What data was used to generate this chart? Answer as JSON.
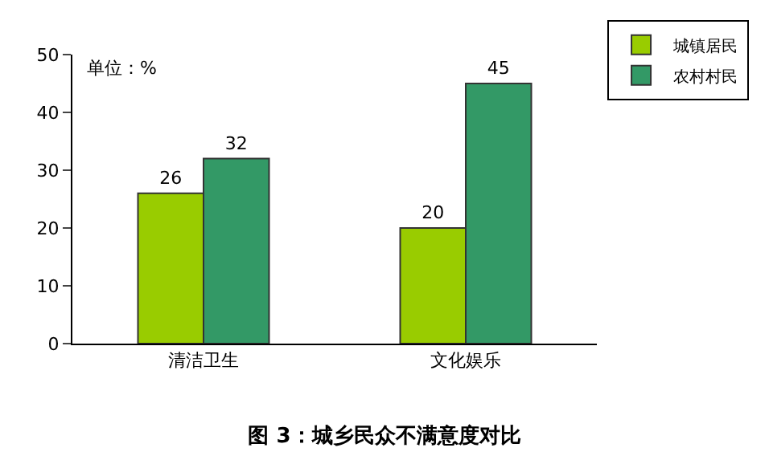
{
  "chart_data": {
    "type": "bar",
    "title": "图 3：城乡民众不满意度对比",
    "categories": [
      "清洁卫生",
      "文化娱乐"
    ],
    "series": [
      {
        "name": "城镇居民",
        "color": "#99cc00",
        "values": [
          26,
          20
        ]
      },
      {
        "name": "农村村民",
        "color": "#339966",
        "values": [
          32,
          45
        ]
      }
    ],
    "ylim": [
      0,
      50
    ],
    "yticks": [
      0,
      10,
      20,
      30,
      40,
      50
    ],
    "annotations": [
      "单位：%"
    ],
    "data_labels": true,
    "grid": false,
    "legend": "top right"
  }
}
